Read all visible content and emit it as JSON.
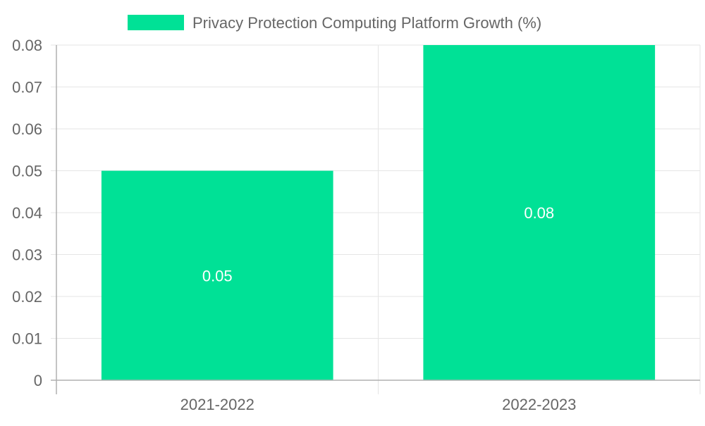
{
  "chart_data": {
    "type": "bar",
    "categories": [
      "2021-2022",
      "2022-2023"
    ],
    "series": [
      {
        "name": "Privacy Protection Computing Platform Growth (%)",
        "values": [
          0.05,
          0.08
        ],
        "color": "#00e196"
      }
    ],
    "data_labels": [
      "0.05",
      "0.08"
    ],
    "ylim": [
      0,
      0.08
    ],
    "y_ticks": [
      0,
      0.01,
      0.02,
      0.03,
      0.04,
      0.05,
      0.06,
      0.07,
      0.08
    ],
    "y_tick_labels": [
      "0",
      "0.01",
      "0.02",
      "0.03",
      "0.04",
      "0.05",
      "0.06",
      "0.07",
      "0.08"
    ],
    "grid": true,
    "legend_position": "top",
    "title": "",
    "xlabel": "",
    "ylabel": ""
  },
  "colors": {
    "bar": "#00e196",
    "grid": "#e5e5e5",
    "axis": "#b0b0b0",
    "text": "#666666",
    "data_label": "#ffffff"
  }
}
